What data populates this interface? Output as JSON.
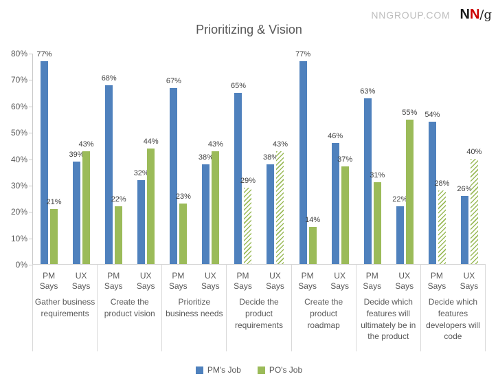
{
  "header": {
    "site": "NNGROUP.COM",
    "logo": {
      "n1": "N",
      "n2": "N",
      "slash_g": "/g"
    }
  },
  "chart_data": {
    "type": "bar",
    "title": "Prioritizing & Vision",
    "xlabel": "",
    "ylabel": "",
    "ylim": [
      0,
      80
    ],
    "grid": false,
    "legend_position": "bottom",
    "data_label_suffix": "%",
    "ytick_labels": [
      "0%",
      "10%",
      "20%",
      "30%",
      "40%",
      "50%",
      "60%",
      "70%",
      "80%"
    ],
    "series": [
      {
        "name": "PM's Job",
        "color": "#4F81BD"
      },
      {
        "name": "PO's Job",
        "color": "#9BBB59"
      }
    ],
    "subgroup_labels": [
      "PM Says",
      "UX Says"
    ],
    "hatch_note": "hatched green bars are drawn with diagonal line pattern",
    "groups": [
      {
        "category": "Gather business requirements",
        "subgroups": [
          {
            "label": "PM Says",
            "values": [
              77,
              21
            ],
            "hatched": [
              false,
              false
            ]
          },
          {
            "label": "UX Says",
            "values": [
              39,
              43
            ],
            "hatched": [
              false,
              false
            ]
          }
        ]
      },
      {
        "category": "Create the product vision",
        "subgroups": [
          {
            "label": "PM Says",
            "values": [
              68,
              22
            ],
            "hatched": [
              false,
              false
            ]
          },
          {
            "label": "UX Says",
            "values": [
              32,
              44
            ],
            "hatched": [
              false,
              false
            ]
          }
        ]
      },
      {
        "category": "Prioritize business needs",
        "subgroups": [
          {
            "label": "PM Says",
            "values": [
              67,
              23
            ],
            "hatched": [
              false,
              false
            ]
          },
          {
            "label": "UX Says",
            "values": [
              38,
              43
            ],
            "hatched": [
              false,
              false
            ]
          }
        ]
      },
      {
        "category": "Decide the product requirements",
        "subgroups": [
          {
            "label": "PM Says",
            "values": [
              65,
              29
            ],
            "hatched": [
              false,
              true
            ]
          },
          {
            "label": "UX Says",
            "values": [
              38,
              43
            ],
            "hatched": [
              false,
              true
            ]
          }
        ]
      },
      {
        "category": "Create the product roadmap",
        "subgroups": [
          {
            "label": "PM Says",
            "values": [
              77,
              14
            ],
            "hatched": [
              false,
              false
            ]
          },
          {
            "label": "UX Says",
            "values": [
              46,
              37
            ],
            "hatched": [
              false,
              false
            ]
          }
        ]
      },
      {
        "category": "Decide which features will ultimately be in the product",
        "subgroups": [
          {
            "label": "PM Says",
            "values": [
              63,
              31
            ],
            "hatched": [
              false,
              false
            ]
          },
          {
            "label": "UX Says",
            "values": [
              22,
              55
            ],
            "hatched": [
              false,
              false
            ]
          }
        ]
      },
      {
        "category": "Decide which features developers will code",
        "subgroups": [
          {
            "label": "PM Says",
            "values": [
              54,
              28
            ],
            "hatched": [
              false,
              true
            ]
          },
          {
            "label": "UX Says",
            "values": [
              26,
              40
            ],
            "hatched": [
              false,
              true
            ]
          }
        ]
      }
    ]
  }
}
